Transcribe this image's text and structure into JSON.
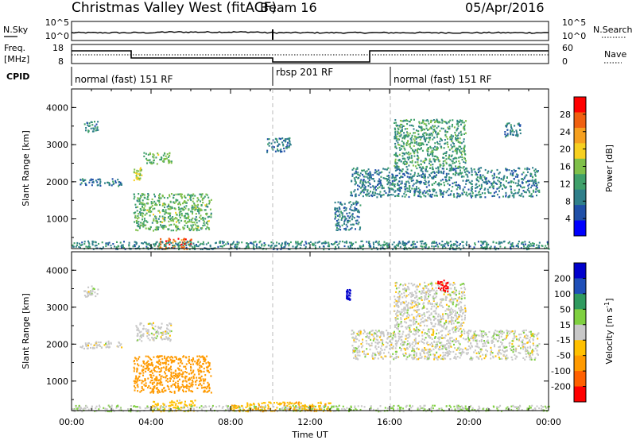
{
  "header": {
    "title": "Christmas Valley West (fitACF)",
    "beam": "Beam 16",
    "date": "05/Apr/2016"
  },
  "panels": {
    "nsky": {
      "label": "N.Sky",
      "right_label": "N.Search",
      "left_ticks": [
        "10^5",
        "10^0"
      ],
      "right_ticks": [
        "10^5",
        "10^0"
      ]
    },
    "freq": {
      "label_line1": "Freq.",
      "label_line2": "[MHz]",
      "right_label": "Nave",
      "left_ticks": [
        "18",
        "8"
      ],
      "right_ticks": [
        "60",
        "0"
      ]
    },
    "cpid": {
      "label": "CPID",
      "segments": [
        {
          "text": "normal (fast) 151 RF",
          "start_hour": 0
        },
        {
          "text": "rbsp 201 RF",
          "start_hour": 10
        },
        {
          "text": "normal (fast) 151 RF",
          "start_hour": 16
        }
      ]
    }
  },
  "colors": {
    "power_scale": [
      "#0000ff",
      "#1f4fa8",
      "#2f7f8a",
      "#3fa06a",
      "#7fc04a",
      "#f7d020",
      "#f6a020",
      "#f06010",
      "#ff0000"
    ],
    "velocity_scale": [
      "#ff0000",
      "#ff6000",
      "#ff9a00",
      "#ffc000",
      "#c8c8c8",
      "#7fd040",
      "#2f9a5f",
      "#1f4fb8",
      "#0000cc"
    ],
    "ground_scatter": "#c8c8c8"
  },
  "chart_data": [
    {
      "type": "heatmap",
      "name": "power",
      "ylabel": "Slant Range [km]",
      "ylim": [
        200,
        4500
      ],
      "xlim": [
        0,
        24
      ],
      "y_ticks": [
        1000,
        2000,
        3000,
        4000
      ],
      "colorbar": {
        "label": "Power [dB]",
        "ticks": [
          "4",
          "8",
          "12",
          "16",
          "20",
          "24",
          "28"
        ],
        "range": [
          0,
          32
        ]
      },
      "regions": [
        {
          "t0": 0.6,
          "t1": 1.3,
          "r0": 3350,
          "r1": 3650,
          "value": 10
        },
        {
          "t0": 0.4,
          "t1": 2.5,
          "r0": 1900,
          "r1": 2100,
          "value": 8
        },
        {
          "t0": 3.1,
          "t1": 3.5,
          "r0": 2050,
          "r1": 2400,
          "value": 18
        },
        {
          "t0": 3.6,
          "t1": 5.0,
          "r0": 2500,
          "r1": 2800,
          "value": 14
        },
        {
          "t0": 3.1,
          "t1": 7.0,
          "r0": 700,
          "r1": 1700,
          "value": 14
        },
        {
          "t0": 4.3,
          "t1": 6.0,
          "r0": 200,
          "r1": 500,
          "value": 26
        },
        {
          "t0": 0.0,
          "t1": 24.0,
          "r0": 200,
          "r1": 420,
          "value": 10
        },
        {
          "t0": 9.8,
          "t1": 11.0,
          "r0": 2800,
          "r1": 3200,
          "value": 8
        },
        {
          "t0": 13.2,
          "t1": 14.5,
          "r0": 700,
          "r1": 1500,
          "value": 8
        },
        {
          "t0": 14.0,
          "t1": 23.5,
          "r0": 1600,
          "r1": 2400,
          "value": 9
        },
        {
          "t0": 16.2,
          "t1": 19.8,
          "r0": 2400,
          "r1": 3700,
          "value": 12
        },
        {
          "t0": 21.7,
          "t1": 22.6,
          "r0": 3200,
          "r1": 3600,
          "value": 9
        }
      ]
    },
    {
      "type": "heatmap",
      "name": "velocity",
      "ylabel": "Slant Range [km]",
      "xlabel": "Time UT",
      "ylim": [
        200,
        4500
      ],
      "xlim": [
        0,
        24
      ],
      "y_ticks": [
        1000,
        2000,
        3000,
        4000
      ],
      "x_ticks": [
        "00:00",
        "04:00",
        "08:00",
        "12:00",
        "16:00",
        "20:00",
        "00:00"
      ],
      "colorbar": {
        "label": "Velocity [m s^-1]",
        "ticks": [
          "200",
          "100",
          "50",
          "15",
          "-15",
          "-50",
          "-100",
          "-200"
        ],
        "range": [
          -250,
          250
        ]
      },
      "regions": [
        {
          "t0": 0.6,
          "t1": 1.3,
          "r0": 3300,
          "r1": 3600,
          "value": 0
        },
        {
          "t0": 0.4,
          "t1": 2.5,
          "r0": 1900,
          "r1": 2100,
          "value": 0
        },
        {
          "t0": 3.1,
          "t1": 7.0,
          "r0": 700,
          "r1": 1700,
          "value": -70
        },
        {
          "t0": 3.2,
          "t1": 5.0,
          "r0": 2100,
          "r1": 2600,
          "value": 0
        },
        {
          "t0": 4.0,
          "t1": 6.2,
          "r0": 200,
          "r1": 500,
          "value": -30
        },
        {
          "t0": 0.0,
          "t1": 24.0,
          "r0": 200,
          "r1": 360,
          "value": 10
        },
        {
          "t0": 8.0,
          "t1": 13.0,
          "r0": 200,
          "r1": 450,
          "value": -40
        },
        {
          "t0": 13.8,
          "t1": 14.0,
          "r0": 3200,
          "r1": 3500,
          "value": 230
        },
        {
          "t0": 14.0,
          "t1": 23.5,
          "r0": 1600,
          "r1": 2400,
          "value": 0
        },
        {
          "t0": 16.2,
          "t1": 19.8,
          "r0": 2400,
          "r1": 3700,
          "value": 0
        },
        {
          "t0": 18.4,
          "t1": 18.9,
          "r0": 3450,
          "r1": 3750,
          "value": -230
        }
      ]
    }
  ]
}
